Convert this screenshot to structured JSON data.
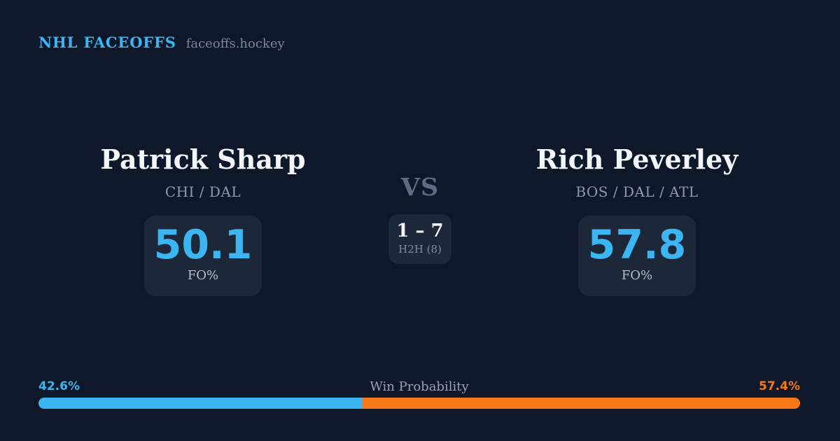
{
  "header": {
    "brand": "NHL FACEOFFS",
    "site": "faceoffs.hockey"
  },
  "players": {
    "left": {
      "name": "Patrick Sharp",
      "teams": "CHI / DAL",
      "fo_pct": "50.1",
      "stat_label": "FO%"
    },
    "right": {
      "name": "Rich Peverley",
      "teams": "BOS / DAL / ATL",
      "fo_pct": "57.8",
      "stat_label": "FO%"
    }
  },
  "versus": {
    "label": "VS",
    "h2h_score": "1 – 7",
    "h2h_label": "H2H (8)"
  },
  "win_probability": {
    "label": "Win Probability",
    "left_label": "42.6%",
    "right_label": "57.4%",
    "left_pct": 42.6,
    "right_pct": 57.4
  },
  "colors": {
    "background": "#0f1828",
    "card": "#1c2737",
    "blue": "#3bb6f2",
    "orange": "#f77918",
    "name_text": "#f2f5f9",
    "muted_text": "#8d9aab"
  }
}
